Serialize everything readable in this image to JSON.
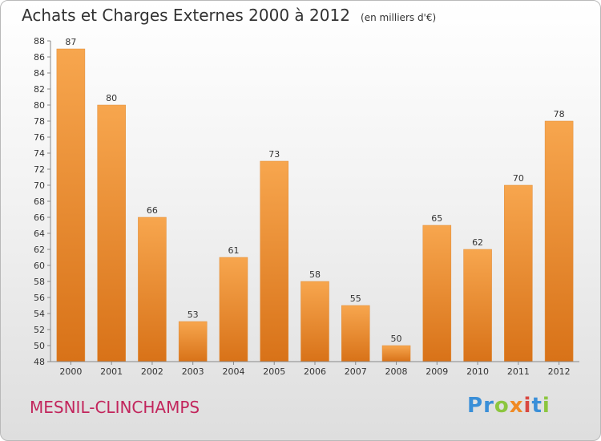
{
  "header": {
    "title": "Achats et Charges Externes 2000 à 2012",
    "unit": "(en milliers d'€)"
  },
  "commune": "MESNIL-CLINCHAMPS",
  "logo": {
    "text": "Proxiti",
    "letters": [
      {
        "char": "P",
        "color": "#3a8fd8"
      },
      {
        "char": "r",
        "color": "#3a8fd8"
      },
      {
        "char": "o",
        "color": "#8cc63f"
      },
      {
        "char": "x",
        "color": "#f08a24"
      },
      {
        "char": "i",
        "color": "#d94841"
      },
      {
        "char": "t",
        "color": "#3a8fd8"
      },
      {
        "char": "i",
        "color": "#8cc63f"
      }
    ]
  },
  "colors": {
    "bar_light": "#f7a64e",
    "bar_dark": "#d87218",
    "axis": "#888888",
    "grid": "#d8d8d8",
    "text": "#333333"
  },
  "chart_data": {
    "type": "bar",
    "categories": [
      "2000",
      "2001",
      "2002",
      "2003",
      "2004",
      "2005",
      "2006",
      "2007",
      "2008",
      "2009",
      "2010",
      "2011",
      "2012"
    ],
    "values": [
      87,
      80,
      66,
      53,
      61,
      73,
      58,
      55,
      50,
      65,
      62,
      70,
      78
    ],
    "ylim": [
      48,
      88
    ],
    "yticks": [
      48,
      50,
      52,
      54,
      56,
      58,
      60,
      62,
      64,
      66,
      68,
      70,
      72,
      74,
      76,
      78,
      80,
      82,
      84,
      86,
      88
    ],
    "data_labels": true,
    "grid": false
  }
}
